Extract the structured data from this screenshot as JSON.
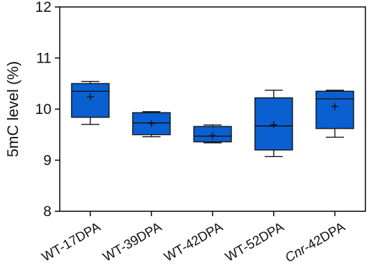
{
  "chart_data": {
    "type": "box",
    "ylabel": "5mC level (%)",
    "xlabel": "",
    "title": "",
    "ylim": [
      8,
      12
    ],
    "yticks": [
      8,
      9,
      10,
      11,
      12
    ],
    "grid": false,
    "colors": {
      "box_fill": "#0a5fd1",
      "stroke": "#111111"
    },
    "categories": [
      "WT-17DPA",
      "WT-39DPA",
      "WT-42DPA",
      "WT-52DPA",
      "Cnr-42DPA"
    ],
    "italic_prefix": [
      "",
      "",
      "",
      "",
      "Cnr"
    ],
    "boxes": [
      {
        "min": 9.7,
        "q1": 9.84,
        "median": 10.35,
        "q3": 10.5,
        "max": 10.54,
        "mean": 10.24
      },
      {
        "min": 9.46,
        "q1": 9.5,
        "median": 9.73,
        "q3": 9.93,
        "max": 9.95,
        "mean": 9.72
      },
      {
        "min": 9.34,
        "q1": 9.36,
        "median": 9.47,
        "q3": 9.66,
        "max": 9.69,
        "mean": 9.48
      },
      {
        "min": 9.07,
        "q1": 9.2,
        "median": 9.67,
        "q3": 10.22,
        "max": 10.37,
        "mean": 9.69
      },
      {
        "min": 9.45,
        "q1": 9.62,
        "median": 10.2,
        "q3": 10.35,
        "max": 10.37,
        "mean": 10.05
      }
    ]
  }
}
